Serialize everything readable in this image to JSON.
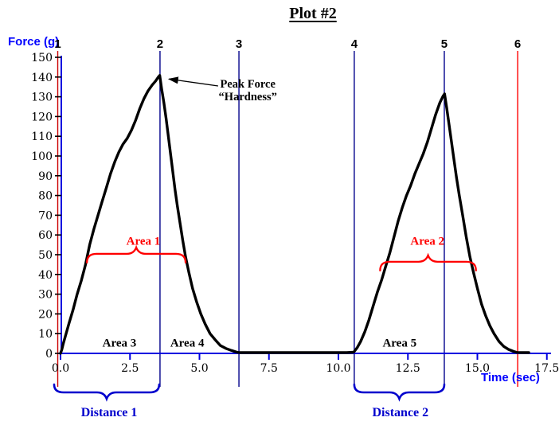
{
  "title": "Plot #2",
  "axis_labels": {
    "y": "Force (g)",
    "x": "Time (sec)"
  },
  "colors": {
    "axis_blue": "#0000e0",
    "marker_blue": "#00008b",
    "marker_red_start": "#cc0000",
    "marker_red_end": "#ff0000",
    "area_red": "#ff0000",
    "distance_blue": "#0000cd",
    "curve_black": "#000000",
    "tick_label_black": "#000000"
  },
  "chart_data": {
    "type": "line",
    "title": "Plot #2",
    "xlabel": "Time (sec)",
    "ylabel": "Force (g)",
    "xlim": [
      0,
      17.5
    ],
    "ylim": [
      0,
      150
    ],
    "grid": false,
    "x_ticks": [
      0,
      2.5,
      5,
      7.5,
      10,
      12.5,
      15,
      17.5
    ],
    "x_tick_labels": [
      "0.0",
      "2.5",
      "5.0",
      "7.5",
      "10.0",
      "12.5",
      "15.0",
      "17.5"
    ],
    "y_ticks": [
      150,
      140,
      130,
      120,
      110,
      100,
      90,
      80,
      70,
      60,
      50,
      40,
      30,
      20,
      10,
      0
    ],
    "y_tick_labels": [
      "150",
      "140",
      "130",
      "120",
      "110",
      "100",
      "90",
      "80",
      "70",
      "60",
      "50",
      "40",
      "30",
      "20",
      "10",
      "0"
    ],
    "series": [
      {
        "name": "Force curve",
        "color": "#000000",
        "points": [
          [
            0,
            0
          ],
          [
            0.05,
            2
          ],
          [
            0.1,
            5
          ],
          [
            0.18,
            9
          ],
          [
            0.3,
            15
          ],
          [
            0.45,
            22
          ],
          [
            0.6,
            30
          ],
          [
            0.75,
            37
          ],
          [
            0.9,
            45
          ],
          [
            1.05,
            55
          ],
          [
            1.2,
            63
          ],
          [
            1.35,
            70
          ],
          [
            1.5,
            77
          ],
          [
            1.65,
            84
          ],
          [
            1.8,
            91
          ],
          [
            1.95,
            97
          ],
          [
            2.1,
            102
          ],
          [
            2.25,
            106
          ],
          [
            2.4,
            109
          ],
          [
            2.55,
            113
          ],
          [
            2.7,
            118
          ],
          [
            2.85,
            124
          ],
          [
            3.0,
            129
          ],
          [
            3.15,
            133
          ],
          [
            3.3,
            136
          ],
          [
            3.42,
            138
          ],
          [
            3.52,
            140
          ],
          [
            3.57,
            140.8
          ],
          [
            3.64,
            134
          ],
          [
            3.72,
            127
          ],
          [
            3.8,
            119
          ],
          [
            3.88,
            110
          ],
          [
            3.96,
            101
          ],
          [
            4.04,
            92
          ],
          [
            4.12,
            83
          ],
          [
            4.2,
            75
          ],
          [
            4.3,
            66
          ],
          [
            4.4,
            57
          ],
          [
            4.5,
            49
          ],
          [
            4.62,
            41
          ],
          [
            4.75,
            33
          ],
          [
            4.9,
            26
          ],
          [
            5.05,
            20
          ],
          [
            5.2,
            15
          ],
          [
            5.38,
            10
          ],
          [
            5.56,
            7
          ],
          [
            5.75,
            4
          ],
          [
            5.95,
            2.5
          ],
          [
            6.15,
            1.5
          ],
          [
            6.3,
            0.8
          ],
          [
            6.42,
            0.4
          ],
          [
            6.6,
            0.4
          ],
          [
            7.5,
            0.4
          ],
          [
            8.5,
            0.4
          ],
          [
            9.5,
            0.4
          ],
          [
            10.3,
            0.4
          ],
          [
            10.55,
            0.6
          ],
          [
            10.68,
            3
          ],
          [
            10.8,
            6
          ],
          [
            10.95,
            11
          ],
          [
            11.1,
            17
          ],
          [
            11.25,
            24
          ],
          [
            11.4,
            31
          ],
          [
            11.55,
            37
          ],
          [
            11.7,
            44
          ],
          [
            11.85,
            51
          ],
          [
            12.0,
            59
          ],
          [
            12.15,
            67
          ],
          [
            12.3,
            74
          ],
          [
            12.45,
            80
          ],
          [
            12.6,
            85
          ],
          [
            12.75,
            91
          ],
          [
            12.9,
            96
          ],
          [
            13.05,
            101
          ],
          [
            13.2,
            107
          ],
          [
            13.35,
            114
          ],
          [
            13.5,
            121
          ],
          [
            13.65,
            127
          ],
          [
            13.77,
            130.5
          ],
          [
            13.82,
            131.5
          ],
          [
            13.9,
            124
          ],
          [
            13.98,
            116
          ],
          [
            14.06,
            108
          ],
          [
            14.15,
            99
          ],
          [
            14.25,
            89
          ],
          [
            14.35,
            80
          ],
          [
            14.47,
            70
          ],
          [
            14.6,
            59
          ],
          [
            14.73,
            49
          ],
          [
            14.86,
            41
          ],
          [
            15.0,
            33
          ],
          [
            15.15,
            25
          ],
          [
            15.3,
            19
          ],
          [
            15.45,
            14
          ],
          [
            15.6,
            10
          ],
          [
            15.78,
            6
          ],
          [
            15.95,
            3.5
          ],
          [
            16.12,
            2
          ],
          [
            16.3,
            1
          ],
          [
            16.42,
            0.5
          ],
          [
            16.6,
            0.4
          ],
          [
            16.85,
            0.4
          ]
        ]
      }
    ],
    "event_markers": [
      {
        "label": "1",
        "time": -0.1,
        "color": "#cc0000"
      },
      {
        "label": "2",
        "time": 3.58,
        "color": "#00008b"
      },
      {
        "label": "3",
        "time": 6.42,
        "color": "#00008b"
      },
      {
        "label": "4",
        "time": 10.57,
        "color": "#00008b"
      },
      {
        "label": "5",
        "time": 13.81,
        "color": "#00008b"
      },
      {
        "label": "6",
        "time": 16.45,
        "color": "#ff0000"
      }
    ],
    "peak_annotation": {
      "lines": [
        "Peak Force",
        "“Hardness”"
      ],
      "text_center_t": 6.74,
      "arrow_tail": [
        5.67,
        135.5
      ],
      "arrow_tip": [
        3.9,
        139
      ]
    },
    "area_labels": [
      {
        "label": "Area 1",
        "color": "#ff0000",
        "t": 2.98,
        "force": 57,
        "brace": {
          "t1": 0.95,
          "t2": 4.5,
          "force_base": 46
        }
      },
      {
        "label": "Area 2",
        "color": "#ff0000",
        "t": 13.2,
        "force": 57,
        "brace": {
          "t1": 11.5,
          "t2": 14.95,
          "force_base": 42
        }
      },
      {
        "label": "Area 3",
        "color": "#000000",
        "t": 2.12,
        "force": 5.5
      },
      {
        "label": "Area 4",
        "color": "#000000",
        "t": 4.56,
        "force": 5.5
      },
      {
        "label": "Area 5",
        "color": "#000000",
        "t": 12.2,
        "force": 5.5
      }
    ],
    "distance_labels": [
      {
        "label": "Distance 1",
        "color": "#0000cd",
        "t1": -0.23,
        "t2": 3.55,
        "label_t": 1.75
      },
      {
        "label": "Distance 2",
        "color": "#0000cd",
        "t1": 10.57,
        "t2": 13.81,
        "label_t": 12.23
      }
    ]
  }
}
